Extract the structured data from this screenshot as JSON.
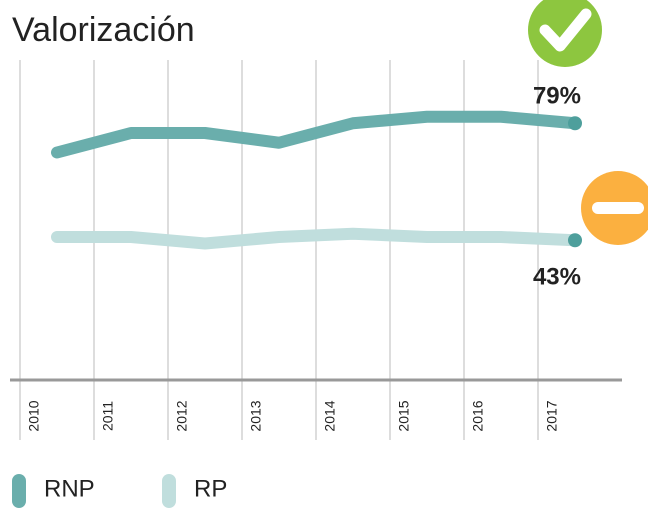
{
  "chart_data": {
    "type": "line",
    "title": "Valorización",
    "categories": [
      "2010",
      "2011",
      "2012",
      "2013",
      "2014",
      "2015",
      "2016",
      "2017"
    ],
    "series": [
      {
        "name": "RNP",
        "color": "#6aaeac",
        "values": [
          70,
          76,
          76,
          73,
          79,
          81,
          81,
          79
        ],
        "value_labels": [
          null,
          null,
          null,
          null,
          null,
          null,
          null,
          "79%"
        ]
      },
      {
        "name": "RP",
        "color": "#c0dedd",
        "values": [
          44,
          44,
          42,
          44,
          45,
          44,
          44,
          43
        ],
        "value_labels": [
          null,
          null,
          null,
          null,
          null,
          null,
          null,
          "43%"
        ]
      }
    ],
    "ylim": [
      0,
      100
    ]
  }
}
